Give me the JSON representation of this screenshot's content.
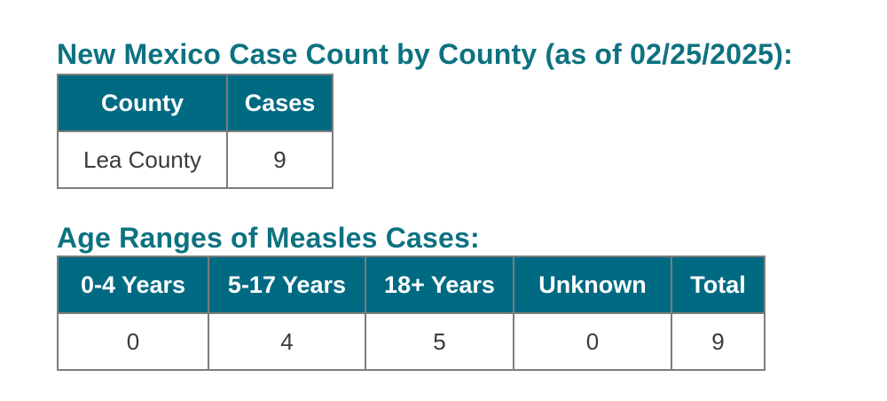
{
  "county_section": {
    "title": "New Mexico Case Count by County (as of 02/25/2025):",
    "headers": [
      "County",
      "Cases"
    ],
    "rows": [
      [
        "Lea County",
        "9"
      ]
    ]
  },
  "age_section": {
    "title": "Age Ranges of Measles Cases:",
    "headers": [
      "0-4 Years",
      "5-17 Years",
      "18+ Years",
      "Unknown",
      "Total"
    ],
    "rows": [
      [
        "0",
        "4",
        "5",
        "0",
        "9"
      ]
    ]
  },
  "colors": {
    "title": "#0d7280",
    "header_bg": "#006a83",
    "header_text": "#ffffff",
    "border": "#7d7d7d"
  }
}
